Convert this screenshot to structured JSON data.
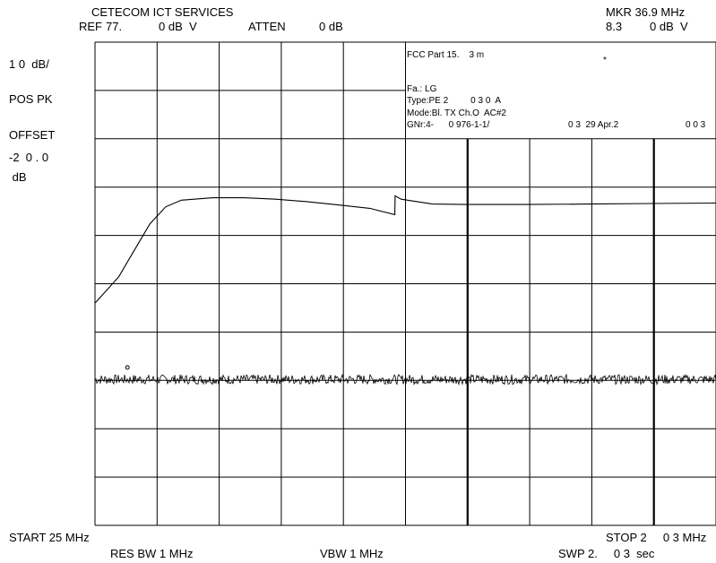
{
  "header": {
    "company": "CETECOM ICT SERVICES",
    "ref_label": "REF",
    "ref_value": "77.",
    "ref_unit": "0 dB  V",
    "atten_label": "ATTEN",
    "atten_value": "0 dB",
    "marker_label": "MKR 36.9 MHz",
    "marker_value": "8.3",
    "marker_unit": "0 dB  V"
  },
  "left_panel": {
    "scale": "1 0  dB/",
    "detector": "POS PK",
    "offset_label": "OFFSET",
    "offset_value": "-2  0 . 0",
    "offset_unit": " dB"
  },
  "info_box": {
    "line1": "FCC Part 15.    3 m",
    "marker_symbol": "*",
    "line2": "Fa.: LG",
    "line3": "Type:PE 2         0 3 0  A",
    "line4": "Mode:Bl. TX Ch.O  AC#2",
    "line5a": "GNr:4-      0 976-1-1/",
    "line5b": "0 3  29 Apr.2",
    "line5c": "0 0 3"
  },
  "footer": {
    "start": "START 25 MHz",
    "stop": "STOP 2     0 3 MHz",
    "rbw": "RES BW 1 MHz",
    "vbw": "VBW 1 MHz",
    "sweep": "SWP 2.     0 3  sec"
  },
  "chart_data": {
    "type": "line",
    "x_range_mhz": [
      25,
      2003
    ],
    "y_range_dbuv": [
      -22.9,
      77.1
    ],
    "grid": true,
    "grid_divisions": [
      10,
      10
    ],
    "series": [
      {
        "x": [
          25,
          100,
          150,
          200,
          250,
          300,
          400,
          500,
          600,
          700,
          800,
          900,
          980,
          981,
          1000,
          1100,
          1200,
          1400,
          1600,
          1800,
          2003
        ],
        "y": [
          23.1,
          28.5,
          34,
          39.5,
          43,
          44.4,
          44.9,
          44.9,
          44.6,
          44.1,
          43.4,
          42.7,
          41.4,
          45.3,
          44.6,
          43.6,
          43.5,
          43.5,
          43.6,
          43.7,
          43.8
        ]
      },
      {
        "noise_floor_dbuv": 7.3,
        "noise_ripple_db": 1.0,
        "x_start": 25,
        "x_end": 2003
      }
    ],
    "marker": {
      "x": 36.9,
      "y": 8.3
    }
  }
}
